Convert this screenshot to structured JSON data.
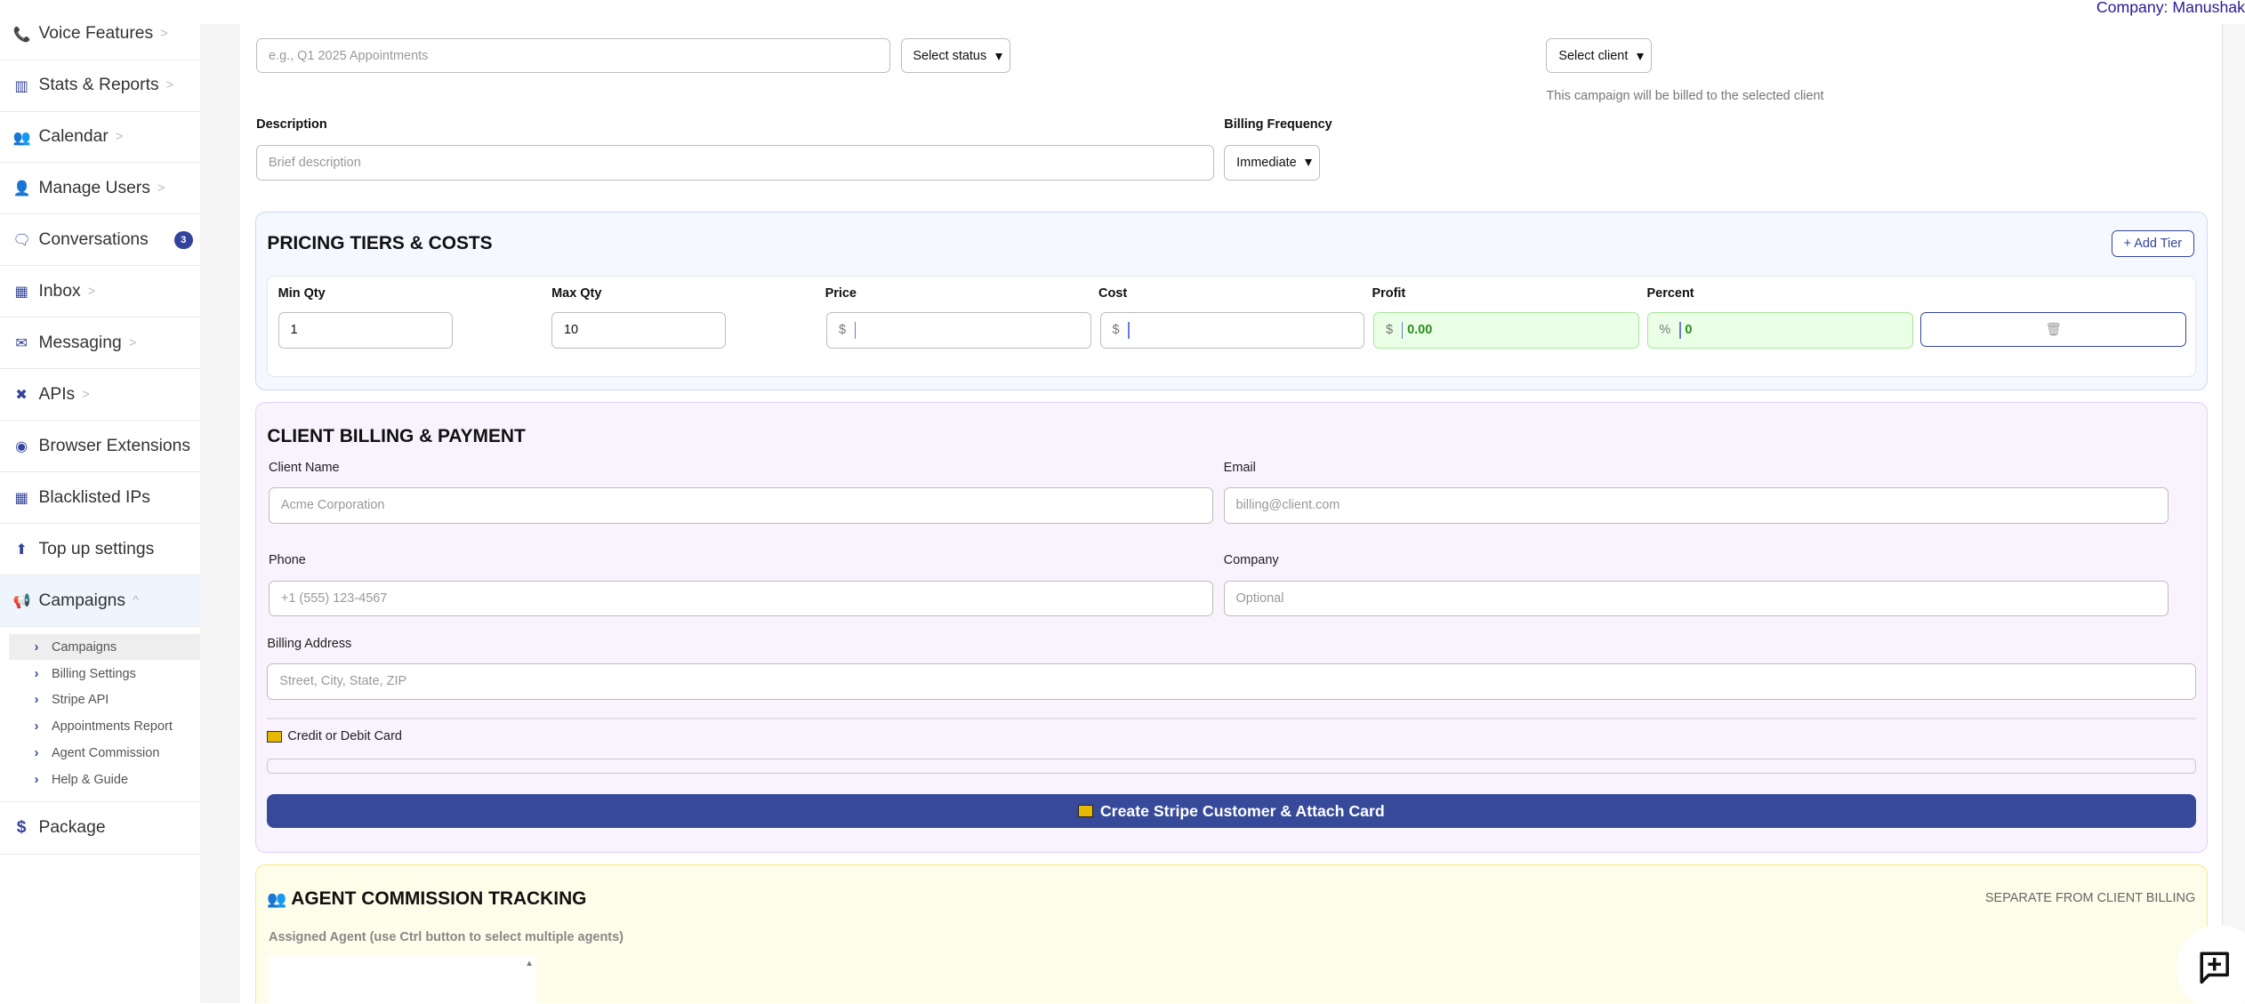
{
  "header": {
    "company": "Company: Manushak"
  },
  "sidebar": {
    "items": [
      {
        "label": "Voice Features",
        "icon": "phone-icon",
        "chevron": true
      },
      {
        "label": "Stats & Reports",
        "icon": "bar-chart-icon",
        "chevron": true
      },
      {
        "label": "Calendar",
        "icon": "users-icon",
        "chevron": true
      },
      {
        "label": "Manage Users",
        "icon": "user-tie-icon",
        "chevron": true
      },
      {
        "label": "Conversations",
        "icon": "chat-icon",
        "badge": "3"
      },
      {
        "label": "Inbox",
        "icon": "table-icon",
        "chevron": true
      },
      {
        "label": "Messaging",
        "icon": "envelope-icon",
        "chevron": true
      },
      {
        "label": "APIs",
        "icon": "expand-icon",
        "chevron": true
      },
      {
        "label": "Browser Extensions",
        "icon": "chrome-icon"
      },
      {
        "label": "Blacklisted IPs",
        "icon": "table-icon"
      },
      {
        "label": "Top up settings",
        "icon": "arrow-up-icon"
      },
      {
        "label": "Campaigns",
        "icon": "megaphone-icon",
        "expanded": true
      }
    ],
    "submenu": [
      "Campaigns",
      "Billing Settings",
      "Stripe API",
      "Appointments Report",
      "Agent Commission",
      "Help & Guide"
    ],
    "package": "Package"
  },
  "form": {
    "name_placeholder": "e.g., Q1 2025 Appointments",
    "status_select": "Select status",
    "client_select": "Select client",
    "client_help": "This campaign will be billed to the selected client",
    "description_label": "Description",
    "description_placeholder": "Brief description",
    "billing_frequency_label": "Billing Frequency",
    "billing_frequency_value": "Immediate"
  },
  "pricing": {
    "title": "PRICING TIERS & COSTS",
    "add_tier": "+ Add Tier",
    "columns": [
      "Min Qty",
      "Max Qty",
      "Price",
      "Cost",
      "Profit",
      "Percent"
    ],
    "row": {
      "min_qty": "1",
      "max_qty": "10",
      "price_prefix": "$",
      "price": "",
      "cost_prefix": "$",
      "cost": "",
      "profit_prefix": "$",
      "profit": "0.00",
      "percent_prefix": "%",
      "percent": "0"
    }
  },
  "billing": {
    "title": "CLIENT BILLING & PAYMENT",
    "client_name_label": "Client Name",
    "client_name_placeholder": "Acme Corporation",
    "email_label": "Email",
    "email_placeholder": "billing@client.com",
    "phone_label": "Phone",
    "phone_placeholder": "+1 (555) 123-4567",
    "company_label": "Company",
    "company_placeholder": "Optional",
    "address_label": "Billing Address",
    "address_placeholder": "Street, City, State, ZIP",
    "card_label": "Credit or Debit Card",
    "submit": "Create Stripe Customer & Attach Card",
    "accent": "#374a9a"
  },
  "agent": {
    "title": "AGENT COMMISSION TRACKING",
    "note": "SEPARATE FROM CLIENT BILLING",
    "assigned_label": "Assigned Agent (use Ctrl button to select multiple agents)"
  }
}
